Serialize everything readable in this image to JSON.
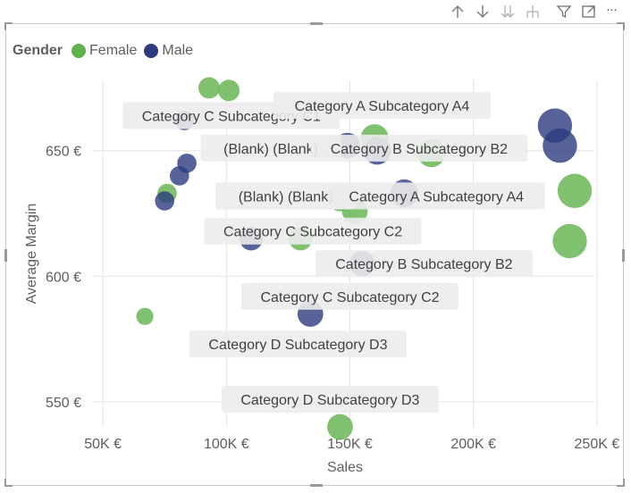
{
  "toolbar": {
    "icons": [
      "drill-up-icon",
      "drill-down-icon",
      "expand-all-icon",
      "expand-hierarchy-icon",
      "filter-icon",
      "focus-mode-icon",
      "more-options-icon"
    ],
    "more_label": "···"
  },
  "legend": {
    "title": "Gender",
    "items": [
      "Female",
      "Male"
    ]
  },
  "colors": {
    "Female": "#5fb14b",
    "Male": "#2d3b7e",
    "label_bg": "#ececec",
    "label_text": "#404040",
    "grid": "#e3e3e3"
  },
  "chart_data": {
    "type": "scatter",
    "xlabel": "Sales",
    "ylabel": "Average Margin",
    "xlim": [
      42000,
      258000
    ],
    "ylim": [
      540,
      678
    ],
    "x_ticks": [
      50000,
      100000,
      150000,
      200000,
      250000
    ],
    "x_tick_labels": [
      "50K €",
      "100K €",
      "150K €",
      "200K €",
      "250K €"
    ],
    "y_ticks": [
      550,
      600,
      650
    ],
    "y_tick_labels": [
      "550 €",
      "600 €",
      "650 €"
    ],
    "legend_position": "top-left",
    "grid": true,
    "series": [
      {
        "name": "Female",
        "points": [
          {
            "x": 93000,
            "y": 675,
            "size": 1.0
          },
          {
            "x": 101000,
            "y": 674,
            "size": 1.0
          },
          {
            "x": 76000,
            "y": 633,
            "size": 0.9
          },
          {
            "x": 67000,
            "y": 584,
            "size": 0.8
          },
          {
            "x": 130000,
            "y": 615,
            "size": 1.1
          },
          {
            "x": 146000,
            "y": 631,
            "size": 1.2
          },
          {
            "x": 152000,
            "y": 626,
            "size": 1.2
          },
          {
            "x": 160000,
            "y": 655,
            "size": 1.3
          },
          {
            "x": 183000,
            "y": 649,
            "size": 1.3
          },
          {
            "x": 146000,
            "y": 540,
            "size": 1.2
          },
          {
            "x": 241000,
            "y": 634,
            "size": 1.6
          },
          {
            "x": 239000,
            "y": 614,
            "size": 1.6
          }
        ]
      },
      {
        "name": "Male",
        "points": [
          {
            "x": 83000,
            "y": 662,
            "size": 0.9
          },
          {
            "x": 84000,
            "y": 645,
            "size": 0.9
          },
          {
            "x": 81000,
            "y": 640,
            "size": 0.9
          },
          {
            "x": 75000,
            "y": 630,
            "size": 0.9
          },
          {
            "x": 110000,
            "y": 615,
            "size": 1.1
          },
          {
            "x": 134000,
            "y": 585,
            "size": 1.2
          },
          {
            "x": 149000,
            "y": 652,
            "size": 1.2
          },
          {
            "x": 161000,
            "y": 650,
            "size": 1.3
          },
          {
            "x": 172000,
            "y": 633,
            "size": 1.3
          },
          {
            "x": 155000,
            "y": 605,
            "size": 1.2
          },
          {
            "x": 233000,
            "y": 660,
            "size": 1.6
          },
          {
            "x": 235000,
            "y": 652,
            "size": 1.6
          }
        ]
      }
    ],
    "annotations": [
      {
        "text": "Category C Subcategory C1",
        "x": 102000,
        "y": 664
      },
      {
        "text": "Category A Subcategory A4",
        "x": 163000,
        "y": 668
      },
      {
        "text": "(Blank) (Blank)",
        "x": 118000,
        "y": 651
      },
      {
        "text": "Category B Subcategory B2",
        "x": 178000,
        "y": 651
      },
      {
        "text": "(Blank) (Blank)",
        "x": 124000,
        "y": 632
      },
      {
        "text": "Category A Subcategory A4",
        "x": 185000,
        "y": 632
      },
      {
        "text": "Category C Subcategory C2",
        "x": 135000,
        "y": 618
      },
      {
        "text": "Category B Subcategory B2",
        "x": 180000,
        "y": 605
      },
      {
        "text": "Category C Subcategory C2",
        "x": 150000,
        "y": 592
      },
      {
        "text": "Category D Subcategory D3",
        "x": 129000,
        "y": 573
      },
      {
        "text": "Category D Subcategory D3",
        "x": 142000,
        "y": 551
      }
    ]
  }
}
